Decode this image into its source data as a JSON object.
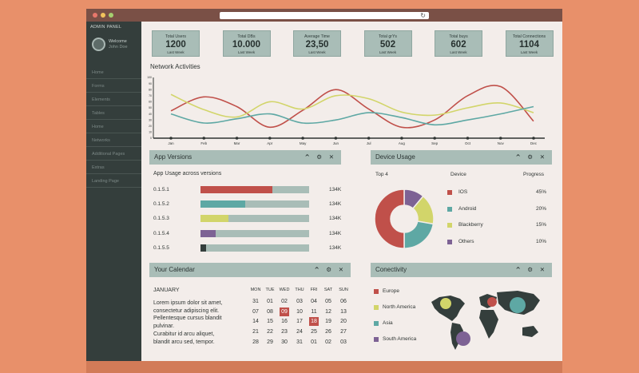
{
  "sidebar": {
    "title": "ADMIN PANEL",
    "welcome": "Welcome",
    "user": "John Doe",
    "items": [
      "Home",
      "Forms",
      "Elements",
      "Tables",
      "Home",
      "Networks",
      "Additional Pages",
      "Extras",
      "Landing Page"
    ]
  },
  "kpis": [
    {
      "label": "Total Users",
      "value": "1200",
      "sub": "Last Week"
    },
    {
      "label": "Total DBs",
      "value": "10.000",
      "sub": "Last Week"
    },
    {
      "label": "Average Time",
      "value": "23,50",
      "sub": "Last Week"
    },
    {
      "label": "Total grYs",
      "value": "502",
      "sub": "Last Week"
    },
    {
      "label": "Total buys",
      "value": "602",
      "sub": "Last Week"
    },
    {
      "label": "Total Connections",
      "value": "1104",
      "sub": "Last Week"
    }
  ],
  "network": {
    "title": "Network Activities",
    "chart_data": {
      "type": "line",
      "categories": [
        "Jan",
        "Feb",
        "Mar",
        "Apr",
        "May",
        "Jun",
        "Jul",
        "Aug",
        "Sep",
        "Oct",
        "Nov",
        "Dec"
      ],
      "y_ticks": [
        0,
        10,
        20,
        30,
        40,
        50,
        60,
        70,
        80,
        90,
        100
      ],
      "ylim": [
        0,
        100
      ],
      "series": [
        {
          "color": "#C0504A",
          "values": [
            45,
            68,
            52,
            18,
            46,
            80,
            48,
            18,
            30,
            70,
            85,
            28
          ]
        },
        {
          "color": "#D2D56A",
          "values": [
            72,
            47,
            35,
            60,
            48,
            70,
            65,
            43,
            38,
            50,
            58,
            42
          ]
        },
        {
          "color": "#5EA8A4",
          "values": [
            40,
            25,
            32,
            40,
            25,
            30,
            42,
            34,
            22,
            30,
            40,
            52
          ]
        }
      ]
    }
  },
  "app_versions": {
    "title": "App Versions",
    "controls": "^ ⚙ ✕",
    "subtitle": "App Usage across versions",
    "rows": [
      {
        "label": "0.1.5.1",
        "value": "134K",
        "fill": 0.66,
        "color": "#C0504A"
      },
      {
        "label": "0.1.5.2",
        "value": "134K",
        "fill": 0.41,
        "color": "#5EA8A4"
      },
      {
        "label": "0.1.5.3",
        "value": "134K",
        "fill": 0.26,
        "color": "#D2D56A"
      },
      {
        "label": "0.1.5.4",
        "value": "134K",
        "fill": 0.14,
        "color": "#7D6294"
      },
      {
        "label": "0.1.5.5",
        "value": "134K",
        "fill": 0.05,
        "color": "#343E3C"
      }
    ]
  },
  "device_usage": {
    "title": "Device Usage",
    "controls": "^ ⚙ ✕",
    "top_label": "Top 4",
    "col_device": "Device",
    "col_progress": "Progress",
    "chart_data": {
      "type": "pie",
      "slices": [
        {
          "name": "IOS",
          "value": 45,
          "label": "45%",
          "color": "#C0504A"
        },
        {
          "name": "Android",
          "value": 20,
          "label": "20%",
          "color": "#5EA8A4"
        },
        {
          "name": "Blackberry",
          "value": 15,
          "label": "15%",
          "color": "#D2D56A"
        },
        {
          "name": "Others",
          "value": 10,
          "label": "10%",
          "color": "#7D6294"
        }
      ]
    }
  },
  "calendar": {
    "title": "Your Calendar",
    "controls": "^ ⚙ ✕",
    "month": "JANUARY",
    "text": [
      "Lorem ipsum dolor sit amet,",
      "consectetur adipiscing elit.",
      "Pellentesque cursus blandit",
      "pulvinar.",
      "Curabitur id arcu aliquet,",
      "blandit arcu sed, tempor."
    ],
    "days": [
      "MON",
      "TUE",
      "WED",
      "THU",
      "FRI",
      "SAT",
      "SUN"
    ],
    "weeks": [
      [
        "31",
        "01",
        "02",
        "03",
        "04",
        "05",
        "06"
      ],
      [
        "07",
        "08",
        "09",
        "10",
        "11",
        "12",
        "13"
      ],
      [
        "14",
        "15",
        "16",
        "17",
        "18",
        "19",
        "20"
      ],
      [
        "21",
        "22",
        "23",
        "24",
        "25",
        "26",
        "27"
      ],
      [
        "28",
        "29",
        "30",
        "31",
        "01",
        "02",
        "03"
      ]
    ],
    "highlighted": [
      "09",
      "18"
    ],
    "highlight_color": "#C0504A"
  },
  "connectivity": {
    "title": "Conectivity",
    "controls": "^ ⚙ ✕",
    "legend": [
      {
        "name": "Europe",
        "color": "#C0504A"
      },
      {
        "name": "North America",
        "color": "#D2D56A"
      },
      {
        "name": "Asia",
        "color": "#5EA8A4"
      },
      {
        "name": "South America",
        "color": "#7D6294"
      }
    ]
  },
  "colors": {
    "accent_red": "#C0504A",
    "accent_teal": "#5EA8A4",
    "accent_lime": "#D2D56A",
    "accent_purple": "#7D6294",
    "panel": "#A9BDB7",
    "sidebar": "#343E3C"
  }
}
